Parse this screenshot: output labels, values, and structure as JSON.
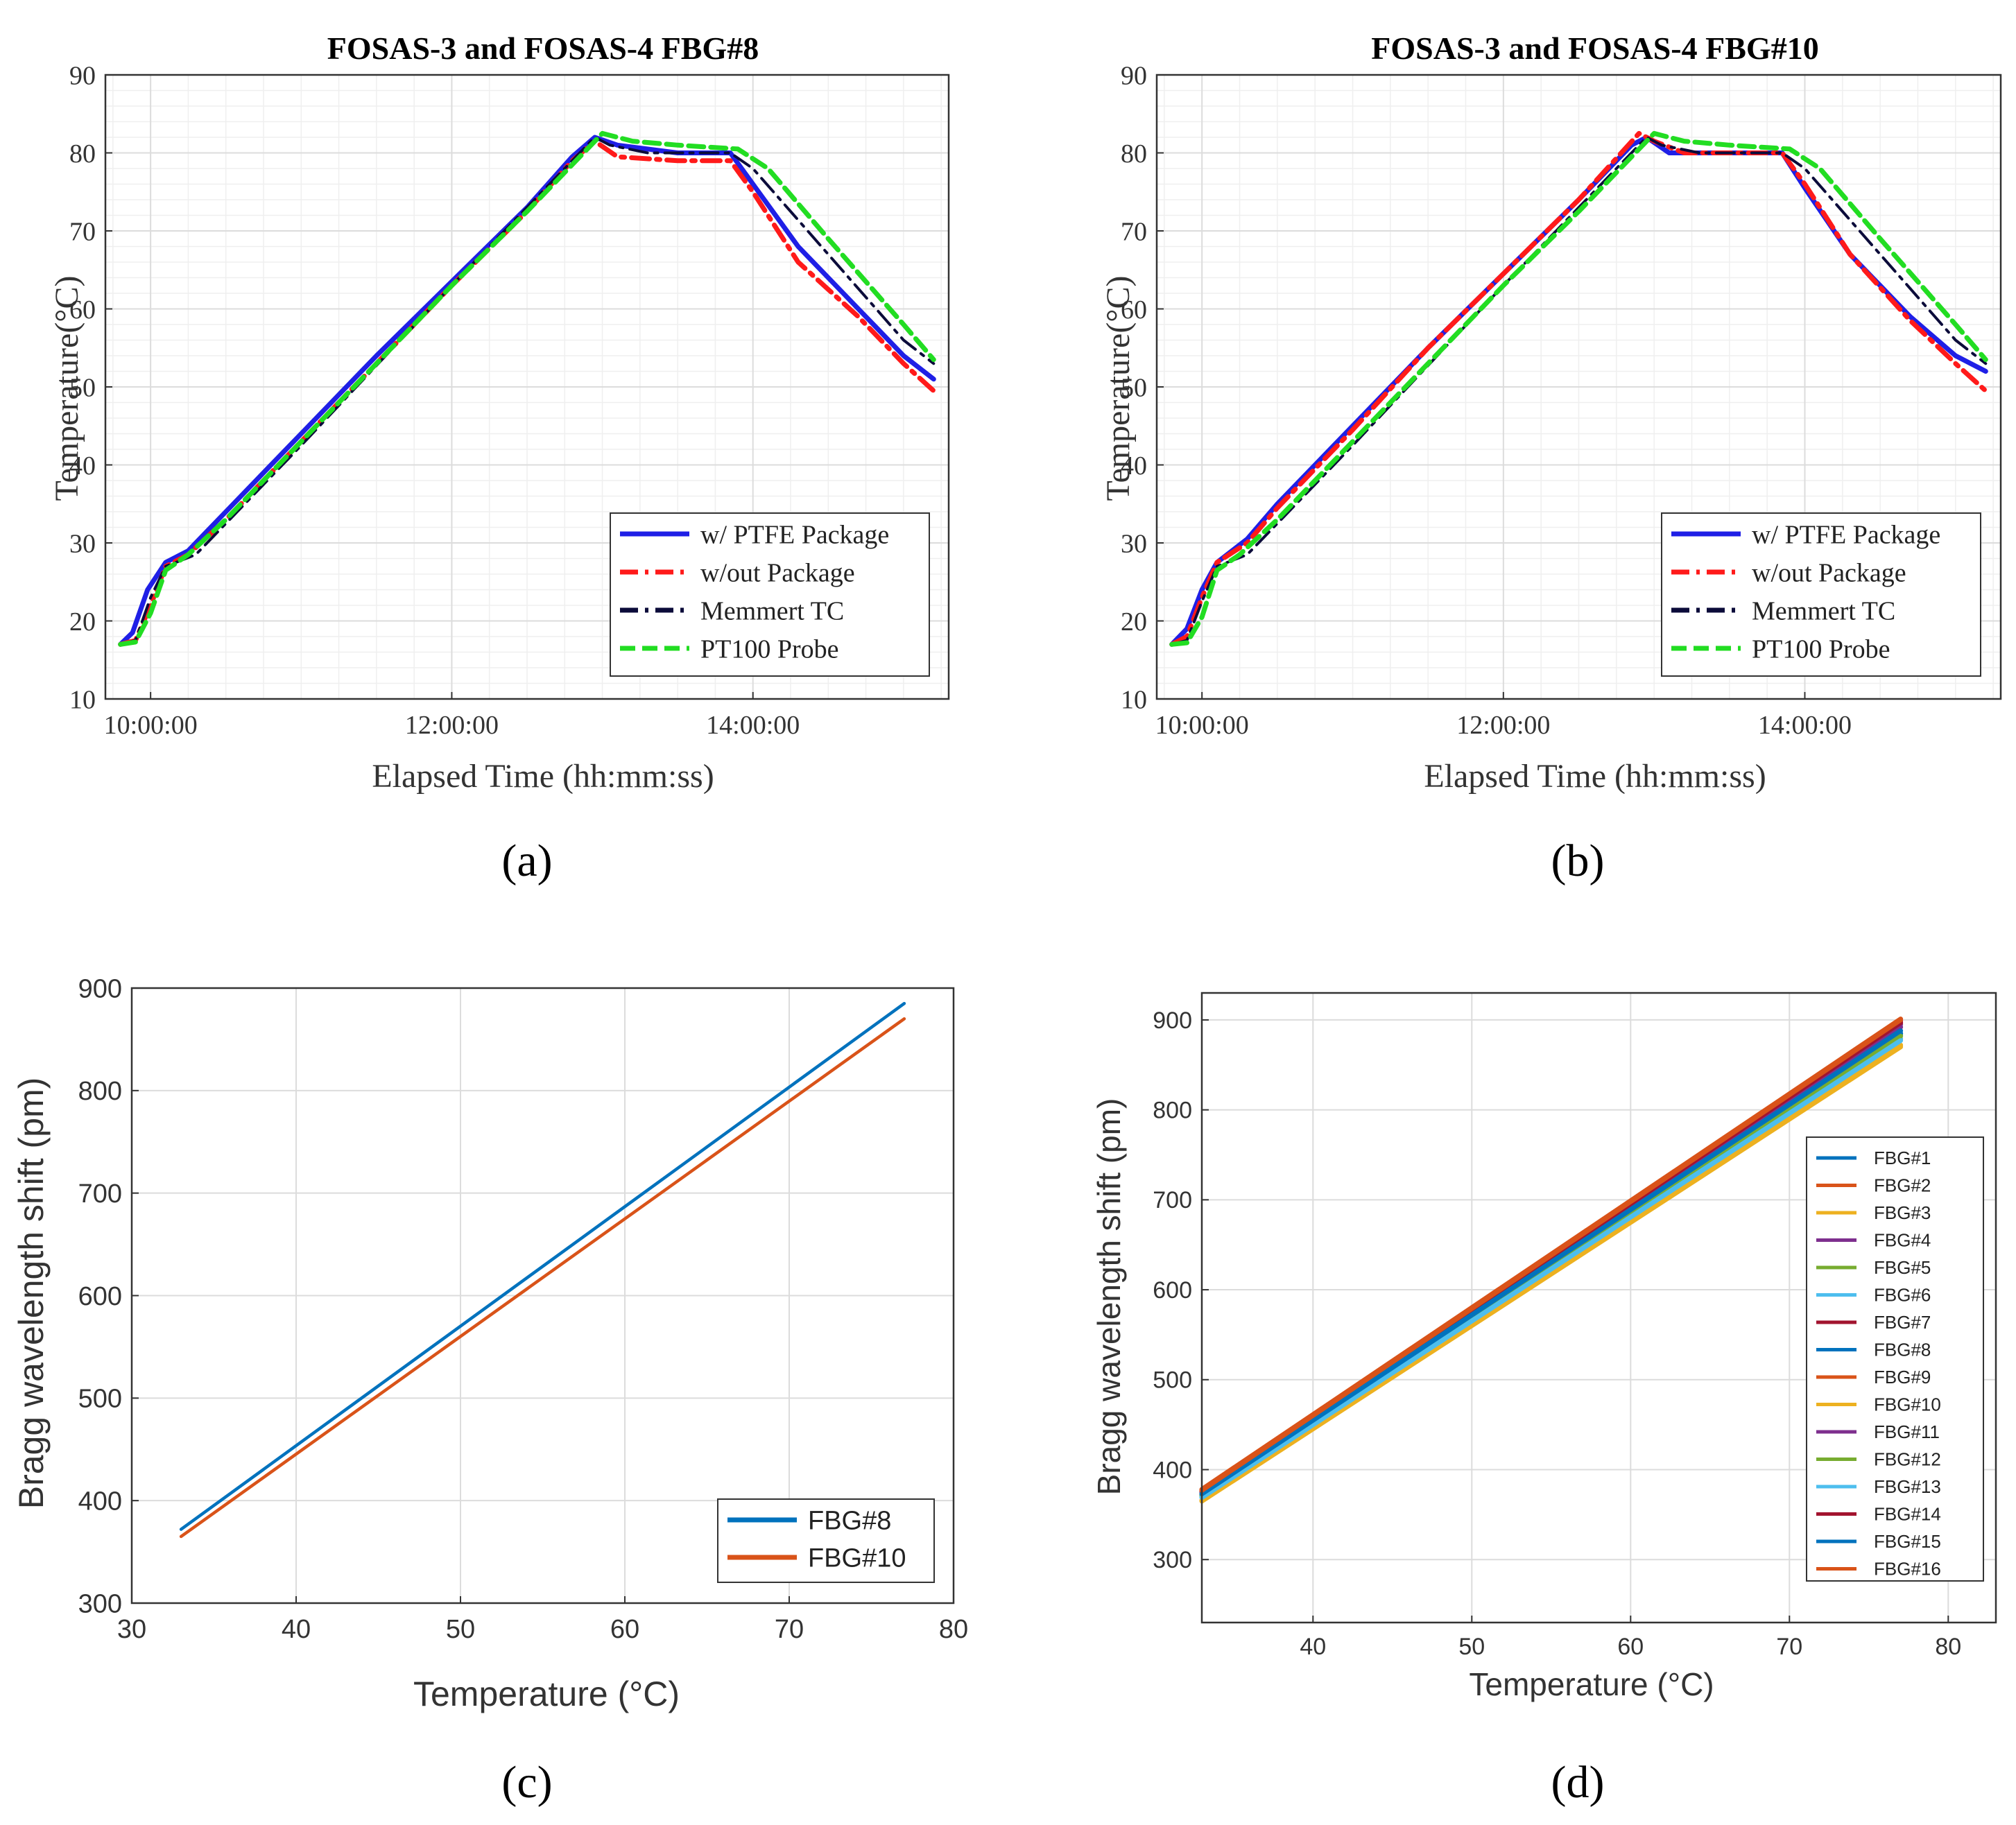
{
  "colors": {
    "blue": "#1f1fe6",
    "red": "#ff1a1a",
    "navy": "#0b0b3a",
    "green": "#22dd22",
    "fbg_palette": [
      "#0072BD",
      "#D95319",
      "#EDB120",
      "#7E2F8E",
      "#77AC30",
      "#4DBEEE",
      "#A2142F",
      "#0072BD",
      "#D95319",
      "#EDB120",
      "#7E2F8E",
      "#77AC30",
      "#4DBEEE",
      "#A2142F",
      "#0072BD",
      "#D95319"
    ]
  },
  "chart_data": [
    {
      "id": "a",
      "type": "line",
      "panel_label": "(a)",
      "title": "FOSAS-3 and FOSAS-4 FBG#8",
      "xlabel": "Elapsed Time (hh:mm:ss)",
      "ylabel": "Temperature(°C)",
      "xlim": [
        9.7,
        15.3
      ],
      "ylim": [
        10,
        90
      ],
      "xticks": [
        10,
        12,
        14
      ],
      "xtick_labels": [
        "10:00:00",
        "12:00:00",
        "14:00:00"
      ],
      "yticks": [
        10,
        20,
        30,
        40,
        50,
        60,
        70,
        80,
        90
      ],
      "grid": true,
      "legend_position": "bottom-right",
      "series": [
        {
          "name": "w/ PTFE Package",
          "style": "solid",
          "color": "blue",
          "x": [
            9.8,
            9.88,
            9.98,
            10.1,
            10.25,
            10.5,
            11.0,
            11.5,
            12.0,
            12.5,
            12.8,
            12.95,
            13.1,
            13.5,
            13.85,
            14.0,
            14.3,
            14.7,
            15.0,
            15.2
          ],
          "y": [
            17,
            18.5,
            24,
            27.5,
            29,
            34,
            44,
            54,
            63.5,
            73,
            79.5,
            82,
            81,
            80,
            80,
            76,
            68,
            60,
            54,
            51
          ]
        },
        {
          "name": "w/out Package",
          "style": "dashdot",
          "color": "red",
          "x": [
            9.8,
            9.9,
            10.0,
            10.1,
            10.25,
            10.5,
            11.0,
            11.5,
            12.0,
            12.5,
            12.8,
            12.95,
            13.1,
            13.5,
            13.85,
            14.0,
            14.3,
            14.7,
            15.0,
            15.2
          ],
          "y": [
            17,
            17.5,
            22,
            27,
            28.5,
            33,
            43,
            53,
            63,
            72.5,
            79,
            81.5,
            79.5,
            79,
            79,
            75,
            66,
            59,
            53,
            49.5
          ]
        },
        {
          "name": "Memmert TC",
          "style": "dashdot",
          "color": "navy",
          "x": [
            9.8,
            9.9,
            10.0,
            10.1,
            10.3,
            11.0,
            12.0,
            12.95,
            13.05,
            13.3,
            13.85,
            14.0,
            14.5,
            15.0,
            15.2
          ],
          "y": [
            17,
            17.5,
            23,
            27,
            28.5,
            42.5,
            63,
            82,
            81,
            80,
            80,
            78,
            67,
            56,
            53
          ]
        },
        {
          "name": "PT100 Probe",
          "style": "dashed",
          "color": "green",
          "x": [
            9.8,
            9.9,
            10.0,
            10.1,
            10.25,
            10.5,
            11.0,
            11.5,
            12.0,
            12.5,
            13.0,
            13.2,
            13.5,
            13.9,
            14.1,
            14.5,
            15.0,
            15.2
          ],
          "y": [
            17,
            17.3,
            21,
            26.5,
            28.5,
            33,
            43,
            53,
            63,
            72.5,
            82.5,
            81.5,
            81,
            80.5,
            78,
            69,
            58,
            53.5
          ]
        }
      ]
    },
    {
      "id": "b",
      "type": "line",
      "panel_label": "(b)",
      "title": "FOSAS-3 and FOSAS-4 FBG#10",
      "xlabel": "Elapsed Time (hh:mm:ss)",
      "ylabel": "Temperature(°C)",
      "xlim": [
        9.7,
        15.3
      ],
      "ylim": [
        10,
        90
      ],
      "xticks": [
        10,
        12,
        14
      ],
      "xtick_labels": [
        "10:00:00",
        "12:00:00",
        "14:00:00"
      ],
      "yticks": [
        10,
        20,
        30,
        40,
        50,
        60,
        70,
        80,
        90
      ],
      "grid": true,
      "legend_position": "bottom-right",
      "series": [
        {
          "name": "w/ PTFE Package",
          "style": "solid",
          "color": "blue",
          "x": [
            9.8,
            9.9,
            10.0,
            10.1,
            10.3,
            10.5,
            11.0,
            11.5,
            12.0,
            12.5,
            12.85,
            12.95,
            13.1,
            13.3,
            13.85,
            14.0,
            14.3,
            14.7,
            15.0,
            15.2
          ],
          "y": [
            17,
            19,
            24,
            27.5,
            30.5,
            35,
            45,
            55,
            64.5,
            74,
            81,
            82,
            80,
            80,
            80,
            75.5,
            67,
            59,
            54,
            52
          ]
        },
        {
          "name": "w/out Package",
          "style": "dashdot",
          "color": "red",
          "x": [
            9.8,
            9.9,
            10.0,
            10.1,
            10.3,
            10.5,
            11.0,
            11.5,
            12.0,
            12.5,
            12.9,
            13.0,
            13.2,
            13.85,
            14.0,
            14.3,
            14.7,
            15.0,
            15.2
          ],
          "y": [
            17,
            18,
            23,
            27.5,
            30,
            34.5,
            44.5,
            55,
            64.5,
            74,
            82.5,
            81.5,
            80,
            80,
            76,
            67,
            58.5,
            53,
            49.5
          ]
        },
        {
          "name": "Memmert TC",
          "style": "dashdot",
          "color": "navy",
          "x": [
            9.8,
            9.9,
            10.0,
            10.1,
            10.3,
            11.0,
            12.0,
            12.95,
            13.05,
            13.3,
            13.85,
            14.0,
            14.5,
            15.0,
            15.2
          ],
          "y": [
            17,
            17.5,
            22.5,
            27,
            28.5,
            42.5,
            63,
            82,
            81,
            80,
            80,
            78,
            67,
            56,
            53
          ]
        },
        {
          "name": "PT100 Probe",
          "style": "dashed",
          "color": "green",
          "x": [
            9.8,
            9.9,
            10.0,
            10.1,
            10.25,
            10.5,
            11.0,
            11.5,
            12.0,
            12.5,
            13.0,
            13.2,
            13.5,
            13.9,
            14.1,
            14.5,
            15.0,
            15.2
          ],
          "y": [
            17,
            17.2,
            20.5,
            26.5,
            28.5,
            33,
            43,
            53,
            63,
            72.5,
            82.5,
            81.5,
            81,
            80.5,
            78,
            69,
            58,
            53.5
          ]
        }
      ]
    },
    {
      "id": "c",
      "type": "line",
      "panel_label": "(c)",
      "xlabel": "Temperature (°C)",
      "ylabel": "Bragg wavelength shift (pm)",
      "xlim": [
        30,
        80
      ],
      "ylim": [
        300,
        900
      ],
      "xticks": [
        30,
        40,
        50,
        60,
        70,
        80
      ],
      "yticks": [
        300,
        400,
        500,
        600,
        700,
        800,
        900
      ],
      "grid": true,
      "legend_position": "bottom-right",
      "series": [
        {
          "name": "FBG#8",
          "color": "#0072BD",
          "x": [
            33,
            77
          ],
          "y": [
            372,
            885
          ]
        },
        {
          "name": "FBG#10",
          "color": "#D95319",
          "x": [
            33,
            77
          ],
          "y": [
            365,
            870
          ]
        }
      ]
    },
    {
      "id": "d",
      "type": "line",
      "panel_label": "(d)",
      "xlabel": "Temperature (°C)",
      "ylabel": "Bragg wavelength shift (pm)",
      "xlim": [
        33,
        83
      ],
      "ylim": [
        230,
        930
      ],
      "xticks": [
        40,
        50,
        60,
        70,
        80
      ],
      "yticks": [
        300,
        400,
        500,
        600,
        700,
        800,
        900
      ],
      "grid": true,
      "legend_position": "right",
      "series": [
        {
          "name": "FBG#1",
          "x": [
            33,
            77
          ],
          "y": [
            372,
            885
          ]
        },
        {
          "name": "FBG#2",
          "x": [
            33,
            77
          ],
          "y": [
            376,
            896
          ]
        },
        {
          "name": "FBG#3",
          "x": [
            33,
            77
          ],
          "y": [
            366,
            872
          ]
        },
        {
          "name": "FBG#4",
          "x": [
            33,
            77
          ],
          "y": [
            375,
            895
          ]
        },
        {
          "name": "FBG#5",
          "x": [
            33,
            77
          ],
          "y": [
            371,
            883
          ]
        },
        {
          "name": "FBG#6",
          "x": [
            33,
            77
          ],
          "y": [
            370,
            879
          ]
        },
        {
          "name": "FBG#7",
          "x": [
            33,
            77
          ],
          "y": [
            377,
            899
          ]
        },
        {
          "name": "FBG#8",
          "x": [
            33,
            77
          ],
          "y": [
            372,
            885
          ]
        },
        {
          "name": "FBG#9",
          "x": [
            33,
            77
          ],
          "y": [
            378,
            901
          ]
        },
        {
          "name": "FBG#10",
          "x": [
            33,
            77
          ],
          "y": [
            365,
            870
          ]
        },
        {
          "name": "FBG#11",
          "x": [
            33,
            77
          ],
          "y": [
            374,
            892
          ]
        },
        {
          "name": "FBG#12",
          "x": [
            33,
            77
          ],
          "y": [
            371,
            882
          ]
        },
        {
          "name": "FBG#13",
          "x": [
            33,
            77
          ],
          "y": [
            369,
            877
          ]
        },
        {
          "name": "FBG#14",
          "x": [
            33,
            77
          ],
          "y": [
            376,
            897
          ]
        },
        {
          "name": "FBG#15",
          "x": [
            33,
            77
          ],
          "y": [
            373,
            888
          ]
        },
        {
          "name": "FBG#16",
          "x": [
            33,
            77
          ],
          "y": [
            377,
            900
          ]
        }
      ]
    }
  ]
}
